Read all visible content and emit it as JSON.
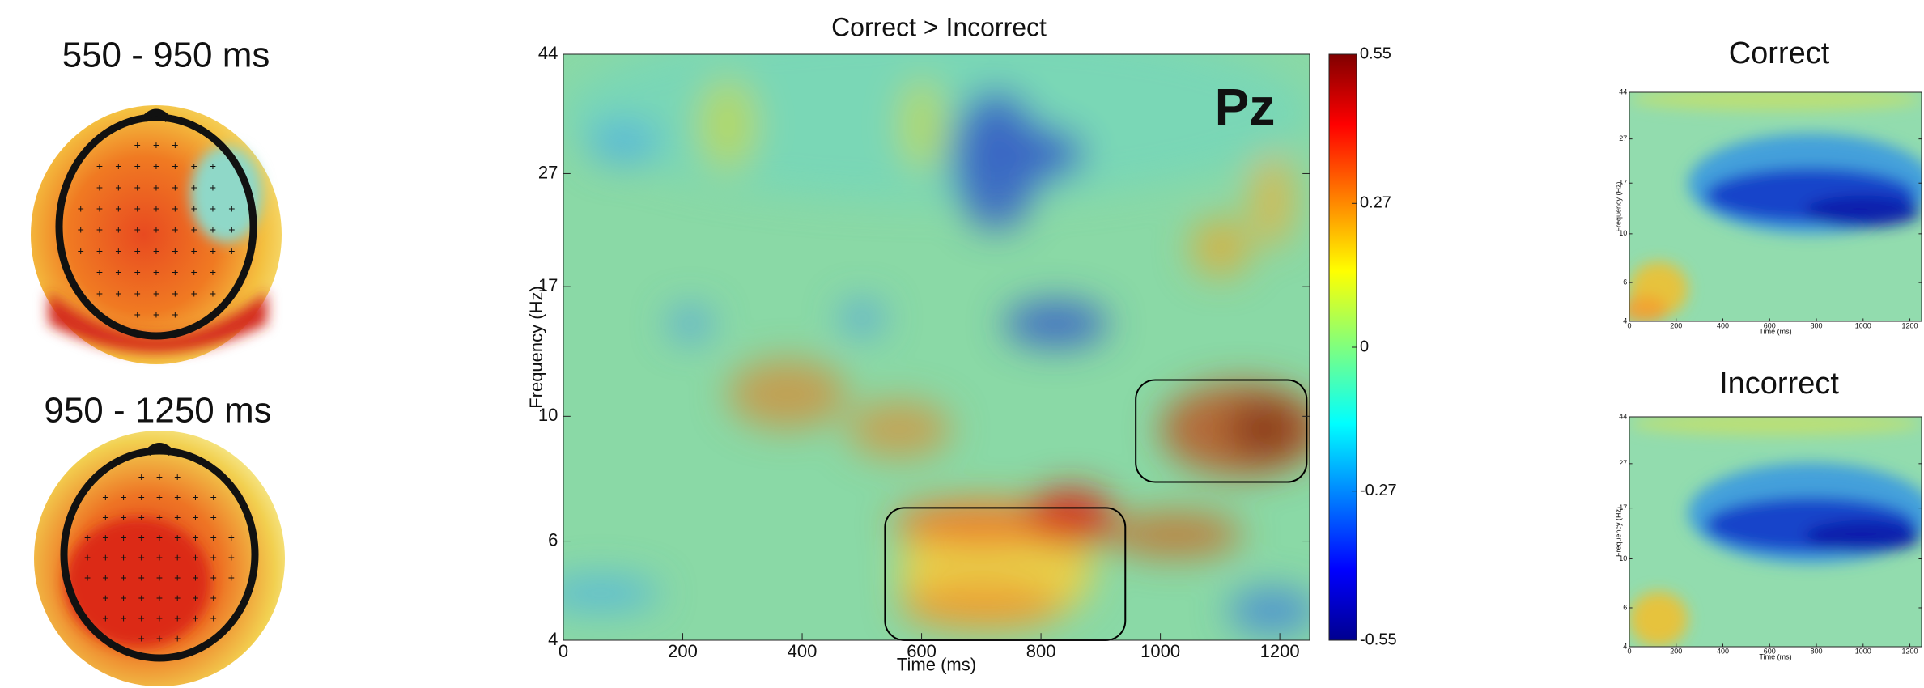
{
  "topomaps": [
    {
      "title": "550 - 950 ms"
    },
    {
      "title": "950 - 1250 ms"
    }
  ],
  "chart_data": [
    {
      "type": "heatmap",
      "title": "Correct > Incorrect",
      "annotation": "Pz",
      "x_label": "Time (ms)",
      "y_label": "Frequency (Hz)",
      "xlim": [
        0,
        1250
      ],
      "xticks": [
        0,
        200,
        400,
        600,
        800,
        1000,
        1200
      ],
      "ylim": [
        4,
        44
      ],
      "yticks": [
        4,
        6,
        10,
        17,
        27,
        44
      ],
      "y_log_scale": true,
      "clim": [
        -0.55,
        0.55
      ],
      "cticks": [
        0.55,
        0.27,
        0,
        -0.27,
        -0.55
      ]
    },
    {
      "type": "heatmap",
      "title": "Correct",
      "x_label": "Time (ms)",
      "y_label": "Frequency (Hz)",
      "xlim": [
        0,
        1250
      ],
      "xticks": [
        0,
        200,
        400,
        600,
        800,
        1000,
        1200
      ],
      "ylim": [
        4,
        44
      ],
      "yticks": [
        4,
        6,
        10,
        17,
        27,
        44
      ],
      "y_log_scale": true
    },
    {
      "type": "heatmap",
      "title": "Incorrect",
      "x_label": "Time (ms)",
      "y_label": "Frequency (Hz)",
      "xlim": [
        0,
        1250
      ],
      "xticks": [
        0,
        200,
        400,
        600,
        800,
        1000,
        1200
      ],
      "ylim": [
        4,
        44
      ],
      "yticks": [
        4,
        6,
        10,
        17,
        27,
        44
      ],
      "y_log_scale": true
    }
  ]
}
